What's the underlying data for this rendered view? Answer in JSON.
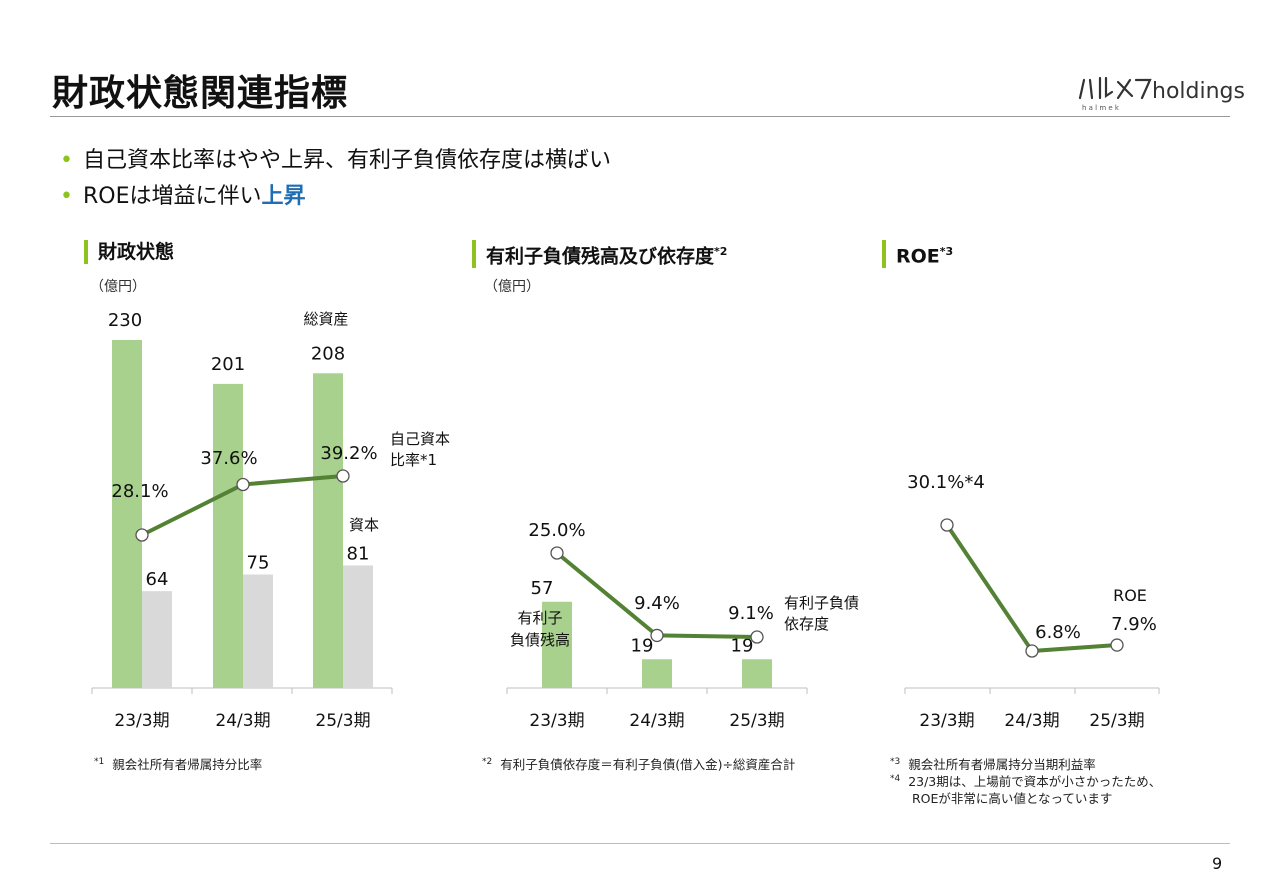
{
  "header": {
    "title": "財政状態関連指標",
    "logo_text": "holdings",
    "logo_script": "ハルメク",
    "logo_sub": "h a l m e k"
  },
  "bullets": [
    {
      "text": "自己資本比率はやや上昇、有利子負債依存度は横ばい",
      "accent": ""
    },
    {
      "text": "ROEは増益に伴い",
      "accent": "上昇"
    }
  ],
  "sections": {
    "s1": {
      "title": "財政状態",
      "sup": "",
      "unit": "（億円）"
    },
    "s2": {
      "title": "有利子負債残高及び依存度",
      "sup": "*2",
      "unit": "（億円）"
    },
    "s3": {
      "title": "ROE",
      "sup": "*3",
      "unit": ""
    }
  },
  "chart_data": [
    {
      "type": "bar",
      "categories": [
        "23/3期",
        "24/3期",
        "25/3期"
      ],
      "series": [
        {
          "name": "総資産",
          "kind": "bar",
          "values": [
            230,
            201,
            208
          ],
          "color": "#a9d18e"
        },
        {
          "name": "資本",
          "kind": "bar",
          "values": [
            64,
            75,
            81
          ],
          "color": "#d9d9d9"
        },
        {
          "name": "自己資本比率*1",
          "kind": "line",
          "values": [
            28.1,
            37.6,
            39.2
          ],
          "labels": [
            "28.1%",
            "37.6%",
            "39.2%"
          ],
          "color": "#548235"
        }
      ],
      "series_labels": {
        "total": "総資産",
        "equity": "資本",
        "ratio_line1": "自己資本",
        "ratio_line2": "比率*1"
      }
    },
    {
      "type": "bar",
      "categories": [
        "23/3期",
        "24/3期",
        "25/3期"
      ],
      "series": [
        {
          "name": "有利子負債残高",
          "kind": "bar",
          "values": [
            57,
            19,
            19
          ],
          "color": "#a9d18e"
        },
        {
          "name": "有利子負債依存度",
          "kind": "line",
          "values": [
            25.0,
            9.4,
            9.1
          ],
          "labels": [
            "25.0%",
            "9.4%",
            "9.1%"
          ],
          "color": "#548235"
        }
      ],
      "series_labels": {
        "bar_line1": "有利子",
        "bar_line2": "負債残高",
        "line_line1": "有利子負債",
        "line_line2": "依存度"
      }
    },
    {
      "type": "line",
      "categories": [
        "23/3期",
        "24/3期",
        "25/3期"
      ],
      "series": [
        {
          "name": "ROE",
          "kind": "line",
          "values": [
            30.1,
            6.8,
            7.9
          ],
          "labels": [
            "30.1%*4",
            "6.8%",
            "7.9%"
          ],
          "color": "#548235"
        }
      ],
      "series_labels": {
        "line": "ROE"
      }
    }
  ],
  "footnotes": {
    "f1": {
      "mark": "*1",
      "text": "親会社所有者帰属持分比率"
    },
    "f2": {
      "mark": "*2",
      "text": "有利子負債依存度＝有利子負債(借入金)÷総資産合計"
    },
    "f3": {
      "mark": "*3",
      "text": "親会社所有者帰属持分当期利益率"
    },
    "f4": {
      "mark": "*4",
      "text": "23/3期は、上場前で資本が小さかったため、",
      "text2": "ROEが非常に高い値となっています"
    }
  },
  "page_number": "9",
  "colors": {
    "accent_green": "#8dc21f",
    "bar_green": "#a9d18e",
    "bar_gray": "#d9d9d9",
    "line_green": "#548235",
    "accent_blue": "#1f6eb4"
  }
}
